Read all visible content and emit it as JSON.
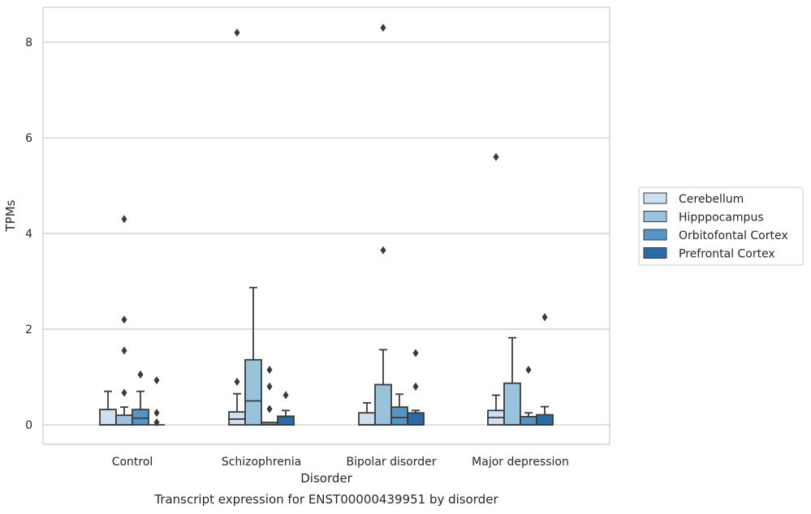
{
  "chart_data": {
    "type": "box",
    "title": "",
    "caption": "Transcript expression for ENST00000439951 by disorder",
    "xlabel": "Disorder",
    "ylabel": "TPMs",
    "ylim": [
      -0.4,
      8.7
    ],
    "yticks": [
      "0",
      "2",
      "4",
      "6",
      "8"
    ],
    "grid": true,
    "legend_position": "right",
    "categories": [
      "Control",
      "Schizophrenia",
      "Bipolar disorder",
      "Major depression"
    ],
    "series": [
      {
        "name": "Cerebellum",
        "color": "#cddff0",
        "boxes": [
          {
            "min": 0,
            "q1": 0,
            "median": 0,
            "q3": 0.32,
            "max": 0.7,
            "outliers": []
          },
          {
            "min": 0,
            "q1": 0,
            "median": 0.12,
            "q3": 0.27,
            "max": 0.65,
            "outliers": [
              0.9,
              8.2
            ]
          },
          {
            "min": 0,
            "q1": 0,
            "median": 0,
            "q3": 0.25,
            "max": 0.46,
            "outliers": []
          },
          {
            "min": 0,
            "q1": 0,
            "median": 0.15,
            "q3": 0.3,
            "max": 0.62,
            "outliers": [
              5.6
            ]
          }
        ]
      },
      {
        "name": "Hipppocampus",
        "color": "#98c3dc",
        "boxes": [
          {
            "min": 0,
            "q1": 0,
            "median": 0,
            "q3": 0.2,
            "max": 0.37,
            "outliers": [
              0.67,
              1.55,
              2.2,
              4.3
            ]
          },
          {
            "min": 0,
            "q1": 0,
            "median": 0.5,
            "q3": 1.36,
            "max": 2.87,
            "outliers": []
          },
          {
            "min": 0,
            "q1": 0,
            "median": 0,
            "q3": 0.84,
            "max": 1.57,
            "outliers": [
              3.65,
              8.3
            ]
          },
          {
            "min": 0,
            "q1": 0,
            "median": 0,
            "q3": 0.87,
            "max": 1.82,
            "outliers": []
          }
        ]
      },
      {
        "name": "Orbitofontal Cortex",
        "color": "#5596c8",
        "boxes": [
          {
            "min": 0,
            "q1": 0,
            "median": 0.14,
            "q3": 0.32,
            "max": 0.7,
            "outliers": [
              1.05
            ]
          },
          {
            "min": 0,
            "q1": 0,
            "median": 0,
            "q3": 0.05,
            "max": 0.05,
            "outliers": [
              0.33,
              0.8,
              1.15
            ]
          },
          {
            "min": 0,
            "q1": 0,
            "median": 0.15,
            "q3": 0.37,
            "max": 0.64,
            "outliers": []
          },
          {
            "min": 0,
            "q1": 0,
            "median": 0,
            "q3": 0.17,
            "max": 0.25,
            "outliers": [
              1.15
            ]
          }
        ]
      },
      {
        "name": "Prefrontal Cortex",
        "color": "#2b6aa8",
        "boxes": [
          {
            "min": 0,
            "q1": 0,
            "median": 0,
            "q3": 0,
            "max": 0,
            "outliers": [
              0.05,
              0.25,
              0.93
            ]
          },
          {
            "min": 0,
            "q1": 0,
            "median": 0,
            "q3": 0.18,
            "max": 0.3,
            "outliers": [
              0.62
            ]
          },
          {
            "min": 0,
            "q1": 0,
            "median": 0,
            "q3": 0.25,
            "max": 0.3,
            "outliers": [
              0.8,
              1.5
            ]
          },
          {
            "min": 0,
            "q1": 0,
            "median": 0,
            "q3": 0.21,
            "max": 0.38,
            "outliers": [
              2.25
            ]
          }
        ]
      }
    ]
  }
}
